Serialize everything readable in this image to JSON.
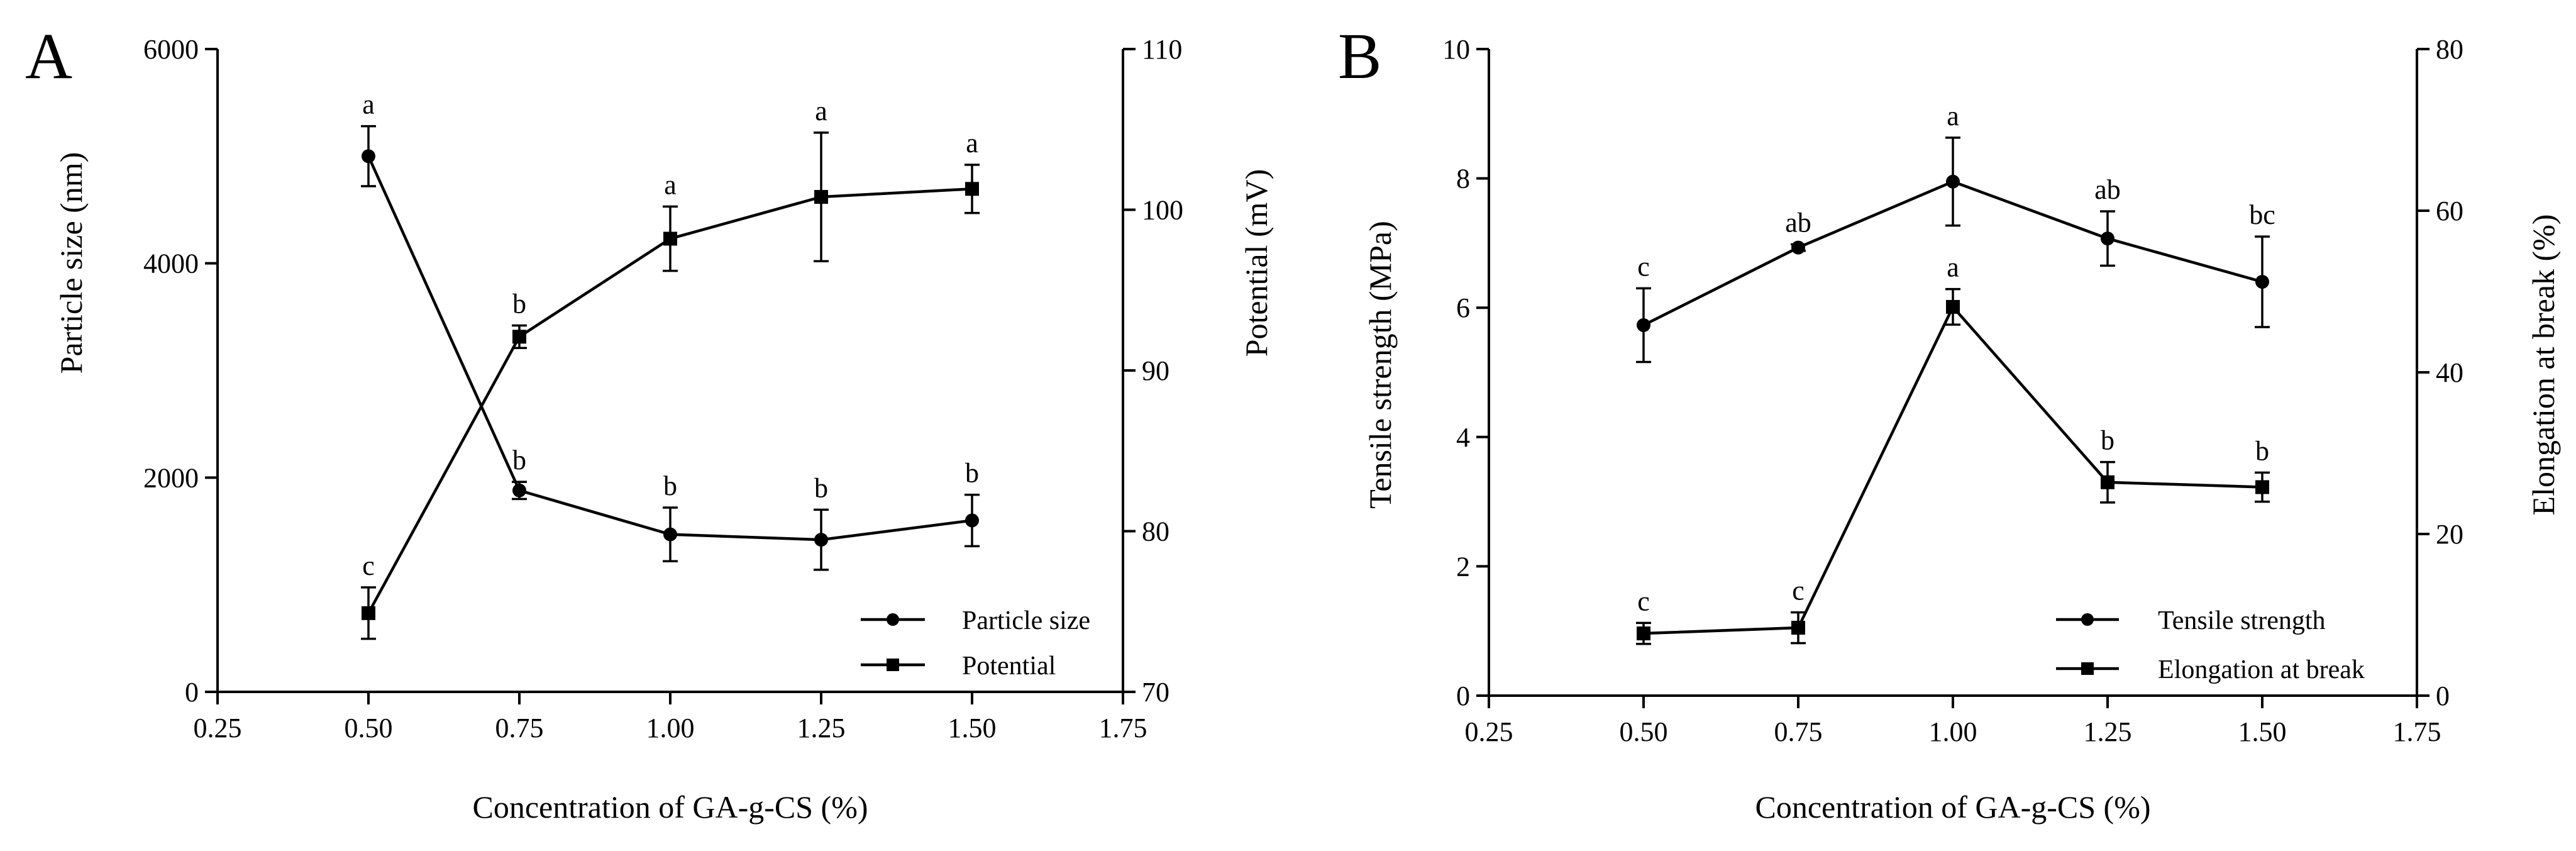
{
  "chart_data": [
    {
      "panel_label": "A",
      "type": "line",
      "xlabel": "Concentration of GA-g-CS (%)",
      "ylabel_left": "Particle size (nm)",
      "ylabel_right": "Potential (mV)",
      "xlim": [
        0.25,
        1.75
      ],
      "xticks": [
        "0.25",
        "0.50",
        "0.75",
        "1.00",
        "1.25",
        "1.50",
        "1.75"
      ],
      "ylim_left": [
        0,
        6000
      ],
      "yticks_left": [
        "0",
        "2000",
        "4000",
        "6000"
      ],
      "ylim_right": [
        70,
        110
      ],
      "yticks_right": [
        "70",
        "80",
        "90",
        "100",
        "110"
      ],
      "legend_position": "bottom-right",
      "series": [
        {
          "name": "Particle size",
          "axis": "left",
          "marker": "circle",
          "x": [
            0.5,
            0.75,
            1.0,
            1.25,
            1.5
          ],
          "y": [
            5000,
            1880,
            1470,
            1420,
            1600
          ],
          "err": [
            280,
            80,
            250,
            280,
            240
          ],
          "letters": [
            "a",
            "b",
            "b",
            "b",
            "b"
          ]
        },
        {
          "name": "Potential",
          "axis": "right",
          "marker": "square",
          "x": [
            0.5,
            0.75,
            1.0,
            1.25,
            1.5
          ],
          "y": [
            74.9,
            92.1,
            98.2,
            100.8,
            101.3
          ],
          "err": [
            1.6,
            0.7,
            2.0,
            4.0,
            1.5
          ],
          "letters": [
            "c",
            "b",
            "a",
            "a",
            "a"
          ]
        }
      ]
    },
    {
      "panel_label": "B",
      "type": "line",
      "xlabel": "Concentration of GA-g-CS (%)",
      "ylabel_left": "Tensile strength (MPa)",
      "ylabel_right": "Elongation at break (%)",
      "xlim": [
        0.25,
        1.75
      ],
      "xticks": [
        "0.25",
        "0.50",
        "0.75",
        "1.00",
        "1.25",
        "1.50",
        "1.75"
      ],
      "ylim_left": [
        0,
        10
      ],
      "yticks_left": [
        "0",
        "2",
        "4",
        "6",
        "8",
        "10"
      ],
      "ylim_right": [
        0,
        80
      ],
      "yticks_right": [
        "0",
        "20",
        "40",
        "60",
        "80"
      ],
      "legend_position": "bottom-right",
      "series": [
        {
          "name": "Tensile strength",
          "axis": "left",
          "marker": "circle",
          "x": [
            0.5,
            0.75,
            1.0,
            1.25,
            1.5
          ],
          "y": [
            5.73,
            6.93,
            7.95,
            7.07,
            6.4
          ],
          "err": [
            0.57,
            0.05,
            0.68,
            0.42,
            0.7
          ],
          "letters": [
            "c",
            "ab",
            "a",
            "ab",
            "bc"
          ]
        },
        {
          "name": "Elongation at break",
          "axis": "right",
          "marker": "square",
          "x": [
            0.5,
            0.75,
            1.0,
            1.25,
            1.5
          ],
          "y": [
            7.7,
            8.4,
            48.1,
            26.4,
            25.8
          ],
          "err": [
            1.3,
            1.9,
            2.2,
            2.5,
            1.8
          ],
          "letters": [
            "c",
            "c",
            "a",
            "b",
            "b"
          ]
        }
      ]
    }
  ]
}
